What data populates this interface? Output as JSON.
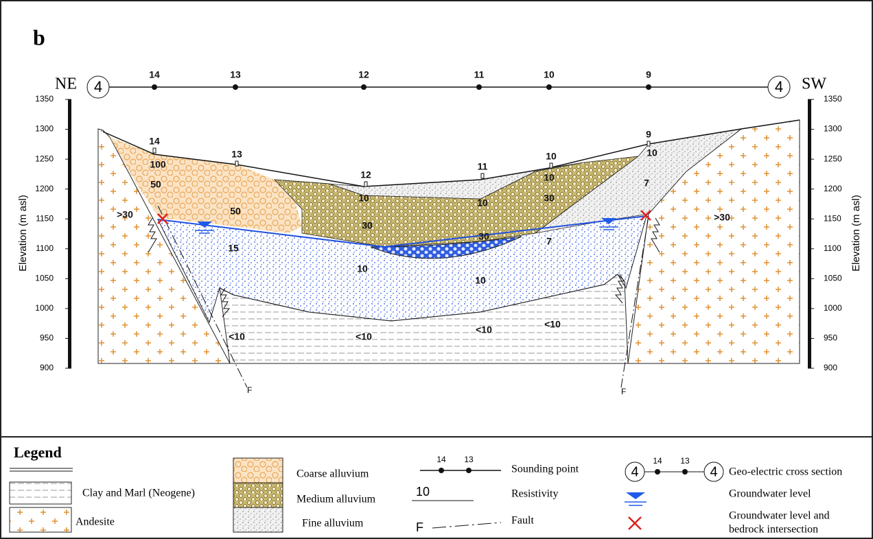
{
  "panel_label": "b",
  "section": {
    "start": "NE",
    "end": "SW",
    "line_number": "4",
    "soundings": [
      "14",
      "13",
      "12",
      "11",
      "10",
      "9"
    ]
  },
  "axis": {
    "label": "Elevation (m asl)",
    "ticks": [
      1350,
      1300,
      1250,
      1200,
      1150,
      1100,
      1050,
      1000,
      950,
      900
    ]
  },
  "surface_soundings": [
    "14",
    "13",
    "12",
    "11",
    "10",
    "9"
  ],
  "resistivity_labels": [
    "100",
    "50",
    "50",
    ">30",
    "15",
    "10",
    "30",
    "10",
    "10",
    "30",
    "10",
    "10",
    "30",
    "7",
    "7",
    "10",
    ">30",
    "<10",
    "<10",
    "<10",
    "<10"
  ],
  "faults": [
    "F",
    "F"
  ],
  "legend": {
    "title": "Legend",
    "clay": "Clay and Marl (Neogene)",
    "andesite": "Andesite",
    "coarse": "Coarse alluvium",
    "medium": "Medium alluvium",
    "fine": "Fine alluvium",
    "sounding_symbol": [
      "14",
      "13"
    ],
    "sounding": "Sounding point",
    "resistivity_symbol": "10",
    "resistivity": "Resistivity",
    "fault_symbol": "F",
    "fault": "Fault",
    "section_symbol": {
      "line": "4",
      "soundings": [
        "14",
        "13"
      ]
    },
    "section": "Geo-electric cross section",
    "groundwater": "Groundwater level",
    "intersection": [
      "Groundwater level and",
      "bedrock intersection"
    ]
  }
}
